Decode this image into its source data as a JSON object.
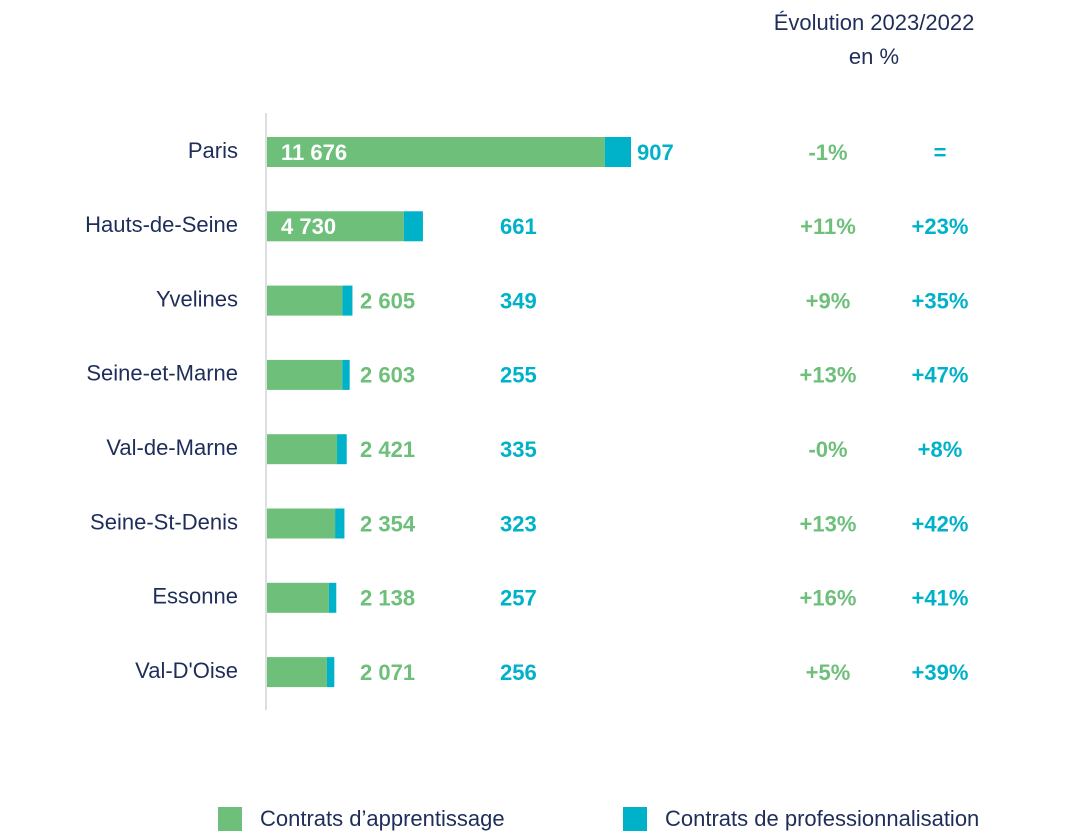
{
  "chart_data": {
    "type": "stacked_bar_horizontal",
    "categories": [
      "Paris",
      "Hauts-de-Seine",
      "Yvelines",
      "Seine-et-Marne",
      "Val-de-Marne",
      "Seine-St-Denis",
      "Essonne",
      "Val-D'Oise"
    ],
    "series": [
      {
        "name": "Contrats d’apprentissage",
        "color": "#6dbf7a",
        "values": [
          11676,
          4730,
          2605,
          2603,
          2421,
          2354,
          2138,
          2071
        ],
        "value_labels": [
          "11 676",
          "4 730",
          "2 605",
          "2 603",
          "2 421",
          "2 354",
          "2 138",
          "2 071"
        ]
      },
      {
        "name": "Contrats de professionnalisation",
        "color": "#00b2c9",
        "values": [
          907,
          661,
          349,
          255,
          335,
          323,
          257,
          256
        ],
        "value_labels": [
          "907",
          "661",
          "349",
          "255",
          "335",
          "323",
          "257",
          "256"
        ]
      }
    ],
    "evolution": {
      "title_lines": [
        "Évolution 2023/2022",
        "en %"
      ],
      "columns": [
        [
          "-1%",
          "+11%",
          "+9%",
          "+13%",
          "-0%",
          "+13%",
          "+16%",
          "+5%"
        ],
        [
          "=",
          "+23%",
          "+35%",
          "+47%",
          "+8%",
          "+42%",
          "+41%",
          "+39%"
        ]
      ]
    }
  }
}
